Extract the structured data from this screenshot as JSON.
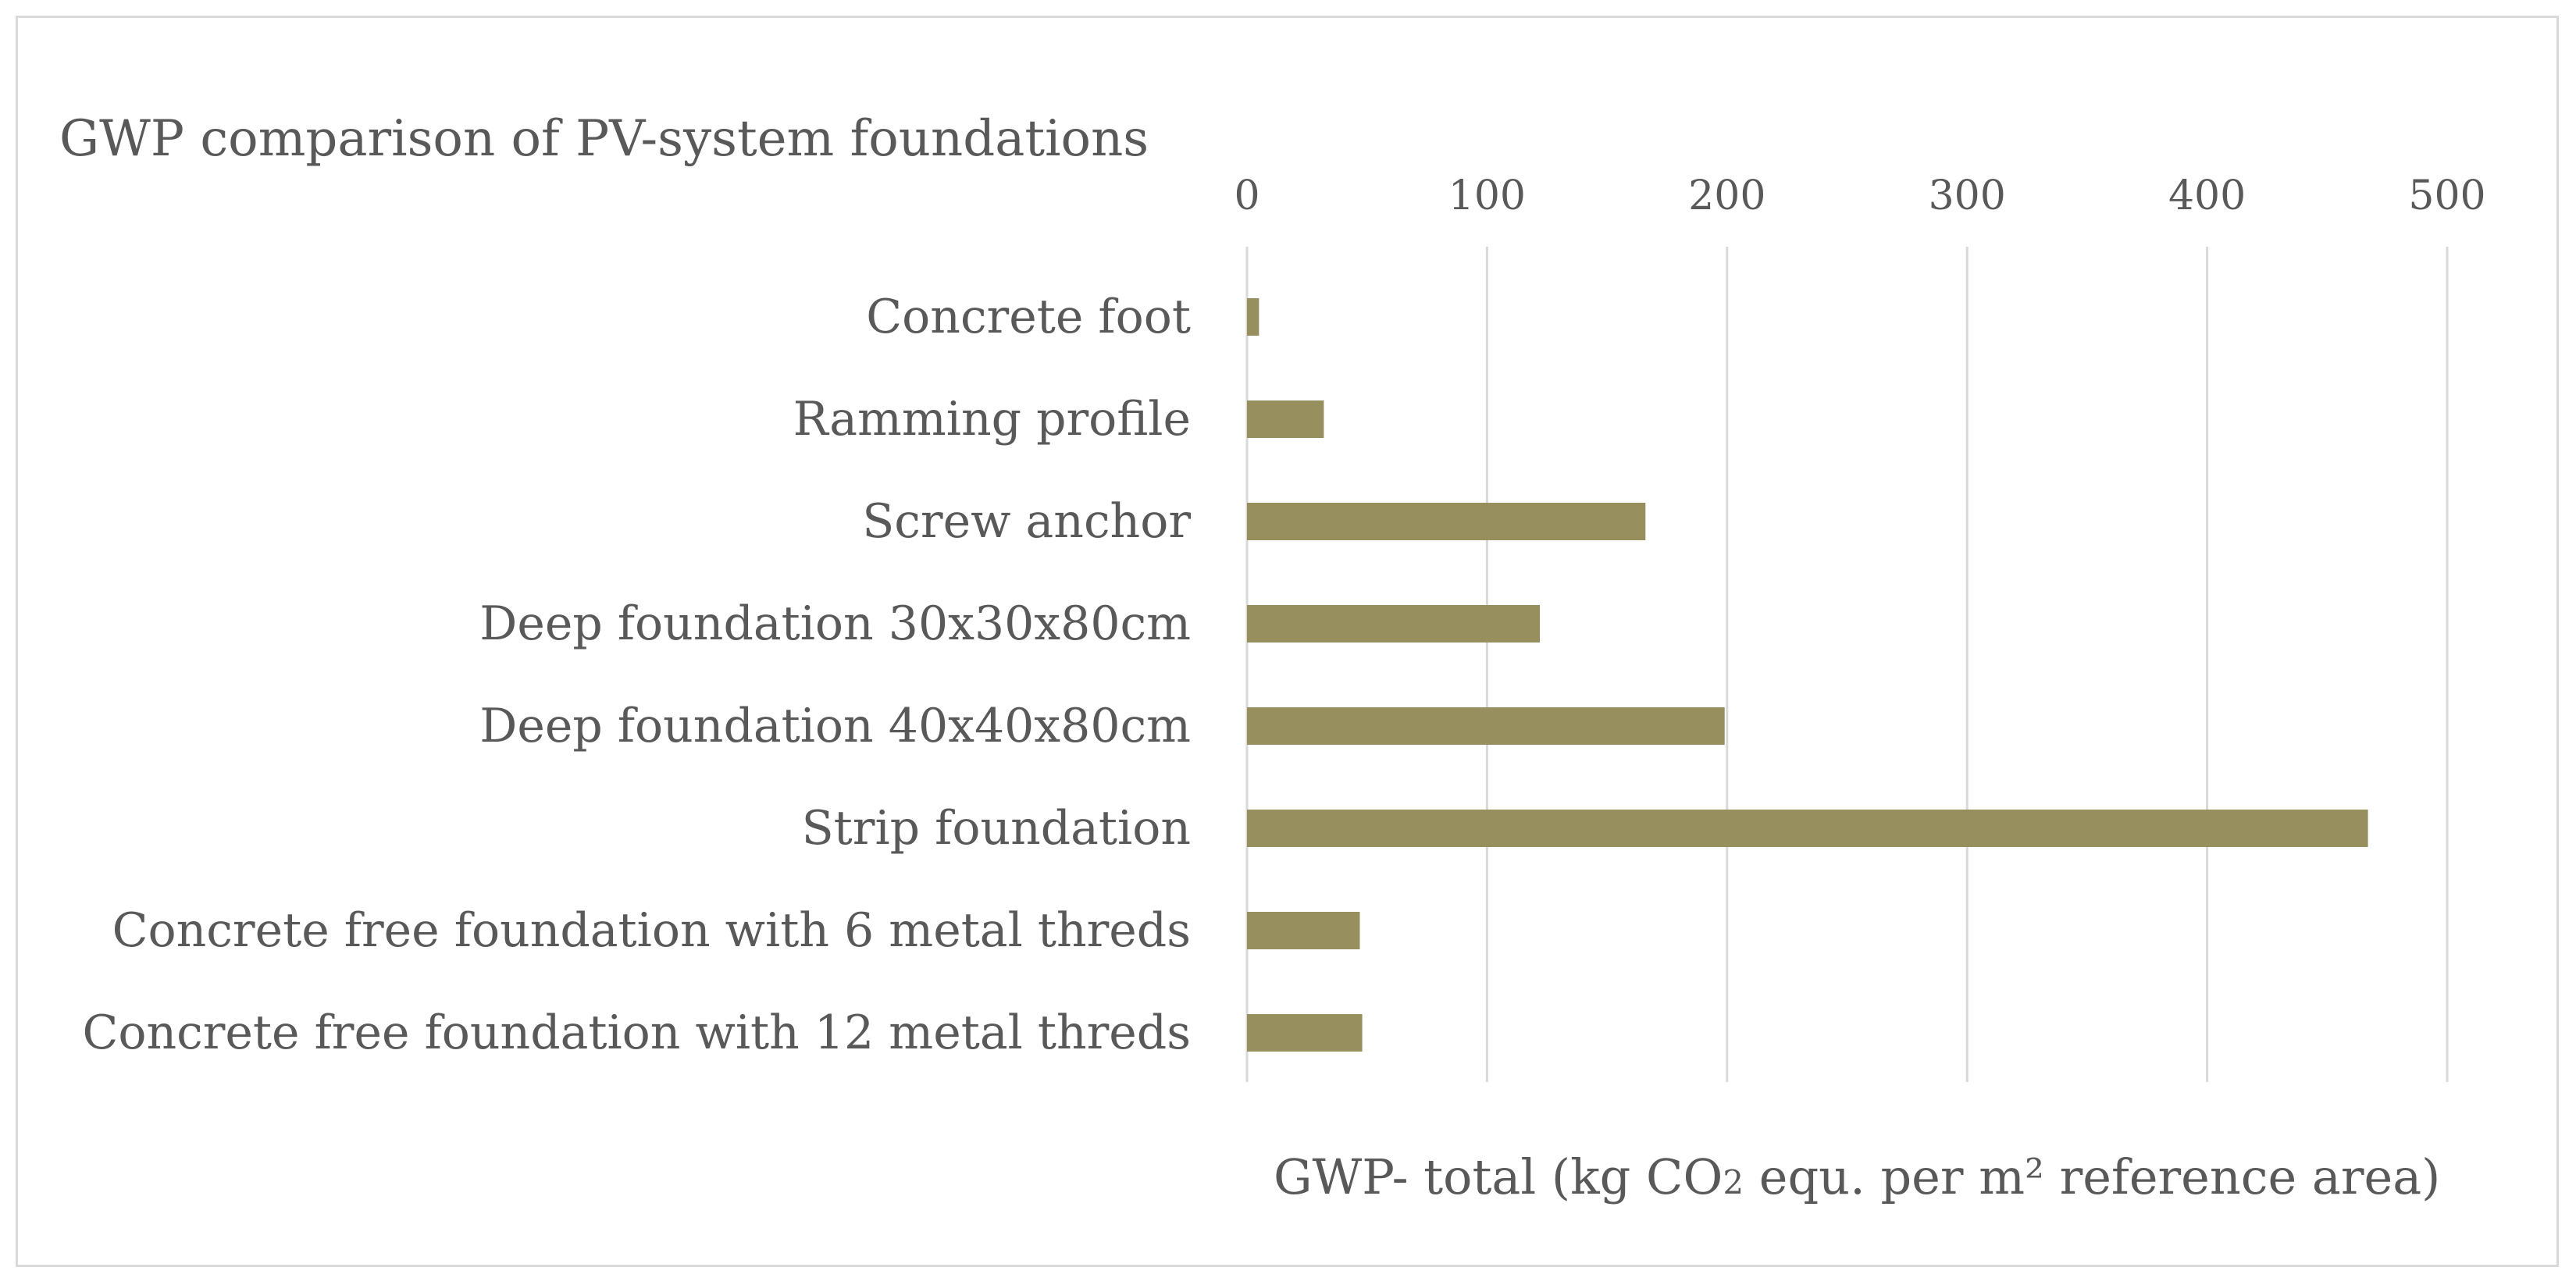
{
  "chart_data": {
    "type": "bar",
    "orientation": "horizontal",
    "title": "GWP comparison of PV-system foundations",
    "categories": [
      "Concrete foot",
      "Ramming profile",
      "Screw anchor",
      "Deep foundation 30x30x80cm",
      "Deep foundation 40x40x80cm",
      "Strip foundation",
      "Concrete free foundation with 6 metal threds",
      "Concrete free foundation with 12 metal threds"
    ],
    "values": [
      5,
      32,
      166,
      122,
      199,
      467,
      47,
      48
    ],
    "xlabel": {
      "prefix": "GWP- total (kg CO",
      "subscript": "2",
      "suffix": " equ. per m² reference area)"
    },
    "ylabel": "",
    "xlim": [
      0,
      500
    ],
    "xticks": [
      "0",
      "100",
      "200",
      "300",
      "400",
      "500"
    ],
    "xaxis_position": "top",
    "grid": true,
    "legend": "none",
    "bar_color": "#978f5e",
    "grid_color": "#d9d9d9",
    "text_color": "#595959"
  }
}
